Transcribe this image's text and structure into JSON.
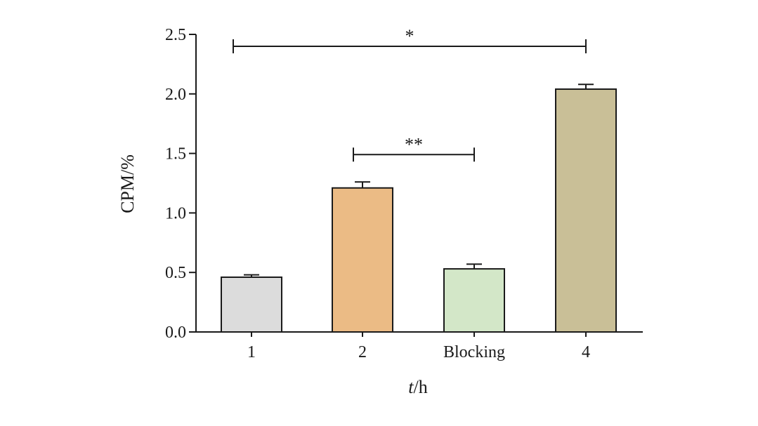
{
  "chart_data": {
    "type": "bar",
    "xlabel_var": "t",
    "xlabel_unit": "/h",
    "ylabel": "CPM/%",
    "ylim": [
      0,
      2.5
    ],
    "yticks": [
      "0.0",
      "0.5",
      "1.0",
      "1.5",
      "2.0",
      "2.5"
    ],
    "categories": [
      "1",
      "2",
      "Blocking",
      "4"
    ],
    "values": [
      0.46,
      1.21,
      0.53,
      2.04
    ],
    "errors": [
      0.02,
      0.05,
      0.04,
      0.04
    ],
    "colors": [
      "#dcdcdc",
      "#ebbb85",
      "#d3e7c8",
      "#c9bf97"
    ],
    "significance": [
      {
        "from": 0,
        "to": 3,
        "y": 2.4,
        "label": "*"
      },
      {
        "from": 1,
        "to": 2,
        "y": 1.49,
        "label": "**"
      }
    ]
  }
}
